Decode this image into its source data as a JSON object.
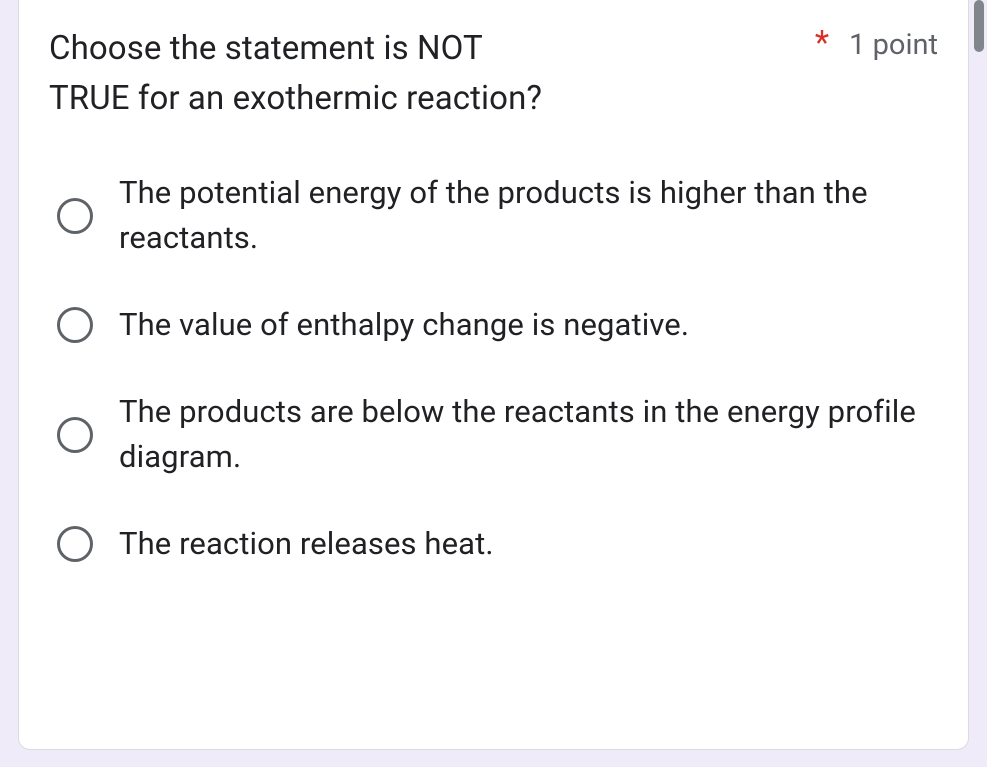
{
  "question": {
    "text_line1": "Choose the statement is NOT",
    "text_line2": "TRUE for an exothermic reaction?",
    "required_mark": "*",
    "points_label": "1 point"
  },
  "options": [
    {
      "text": "The potential energy of the products is higher than the reactants."
    },
    {
      "text": "The value of enthalpy change is negative."
    },
    {
      "text": "The products are below the reactants in the energy profile diagram."
    },
    {
      "text": "The reaction releases heat."
    }
  ],
  "colors": {
    "background": "#f0ebf8",
    "card_bg": "#ffffff",
    "text": "#202124",
    "secondary_text": "#5f6368",
    "required": "#d93025",
    "border": "#dadce0",
    "radio_border": "#5f6368"
  }
}
